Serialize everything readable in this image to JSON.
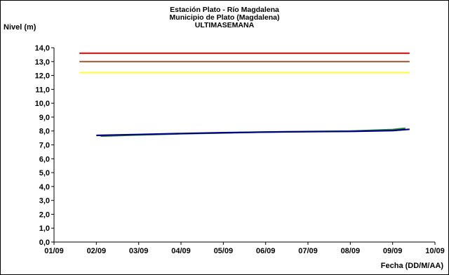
{
  "chart_data": {
    "type": "line",
    "title": "Estación Plato - Río Magdalena",
    "subtitle": "Municipio de Plato (Magdalena)",
    "subtitle2": "ULTIMASEMANA",
    "ylabel": "Nivel (m)",
    "xlabel": "Fecha (DD/M/AA)",
    "ylim": [
      0,
      14
    ],
    "y_ticks": [
      "0,0",
      "1,0",
      "2,0",
      "3,0",
      "4,0",
      "5,0",
      "6,0",
      "7,0",
      "8,0",
      "9,0",
      "10,0",
      "11,0",
      "12,0",
      "13,0",
      "14,0"
    ],
    "xlim": [
      0,
      9
    ],
    "x_ticks": [
      "01/09",
      "02/09",
      "03/09",
      "04/09",
      "05/09",
      "06/09",
      "07/09",
      "08/09",
      "09/09",
      "10/09"
    ],
    "grid": false,
    "legend": "none",
    "thresholds": [
      {
        "value": 13.6,
        "x_start": 0.6,
        "x_end": 8.4,
        "color": "#ff0000"
      },
      {
        "value": 13.0,
        "x_start": 0.6,
        "x_end": 8.4,
        "color": "#a0522d"
      },
      {
        "value": 12.2,
        "x_start": 0.6,
        "x_end": 8.4,
        "color": "#ffff33"
      }
    ],
    "series": [
      {
        "color": "#1f8a1f",
        "x": [
          1.1,
          2.0,
          3.0,
          4.0,
          5.0,
          6.0,
          7.0,
          8.0,
          8.3
        ],
        "y": [
          7.63,
          7.72,
          7.8,
          7.86,
          7.93,
          7.96,
          7.99,
          8.1,
          8.2
        ]
      },
      {
        "color": "#00008b",
        "x": [
          1.0,
          2.0,
          3.0,
          4.0,
          5.0,
          6.0,
          7.0,
          8.0,
          8.4
        ],
        "y": [
          7.68,
          7.75,
          7.82,
          7.88,
          7.92,
          7.95,
          7.97,
          8.03,
          8.12
        ]
      }
    ]
  }
}
